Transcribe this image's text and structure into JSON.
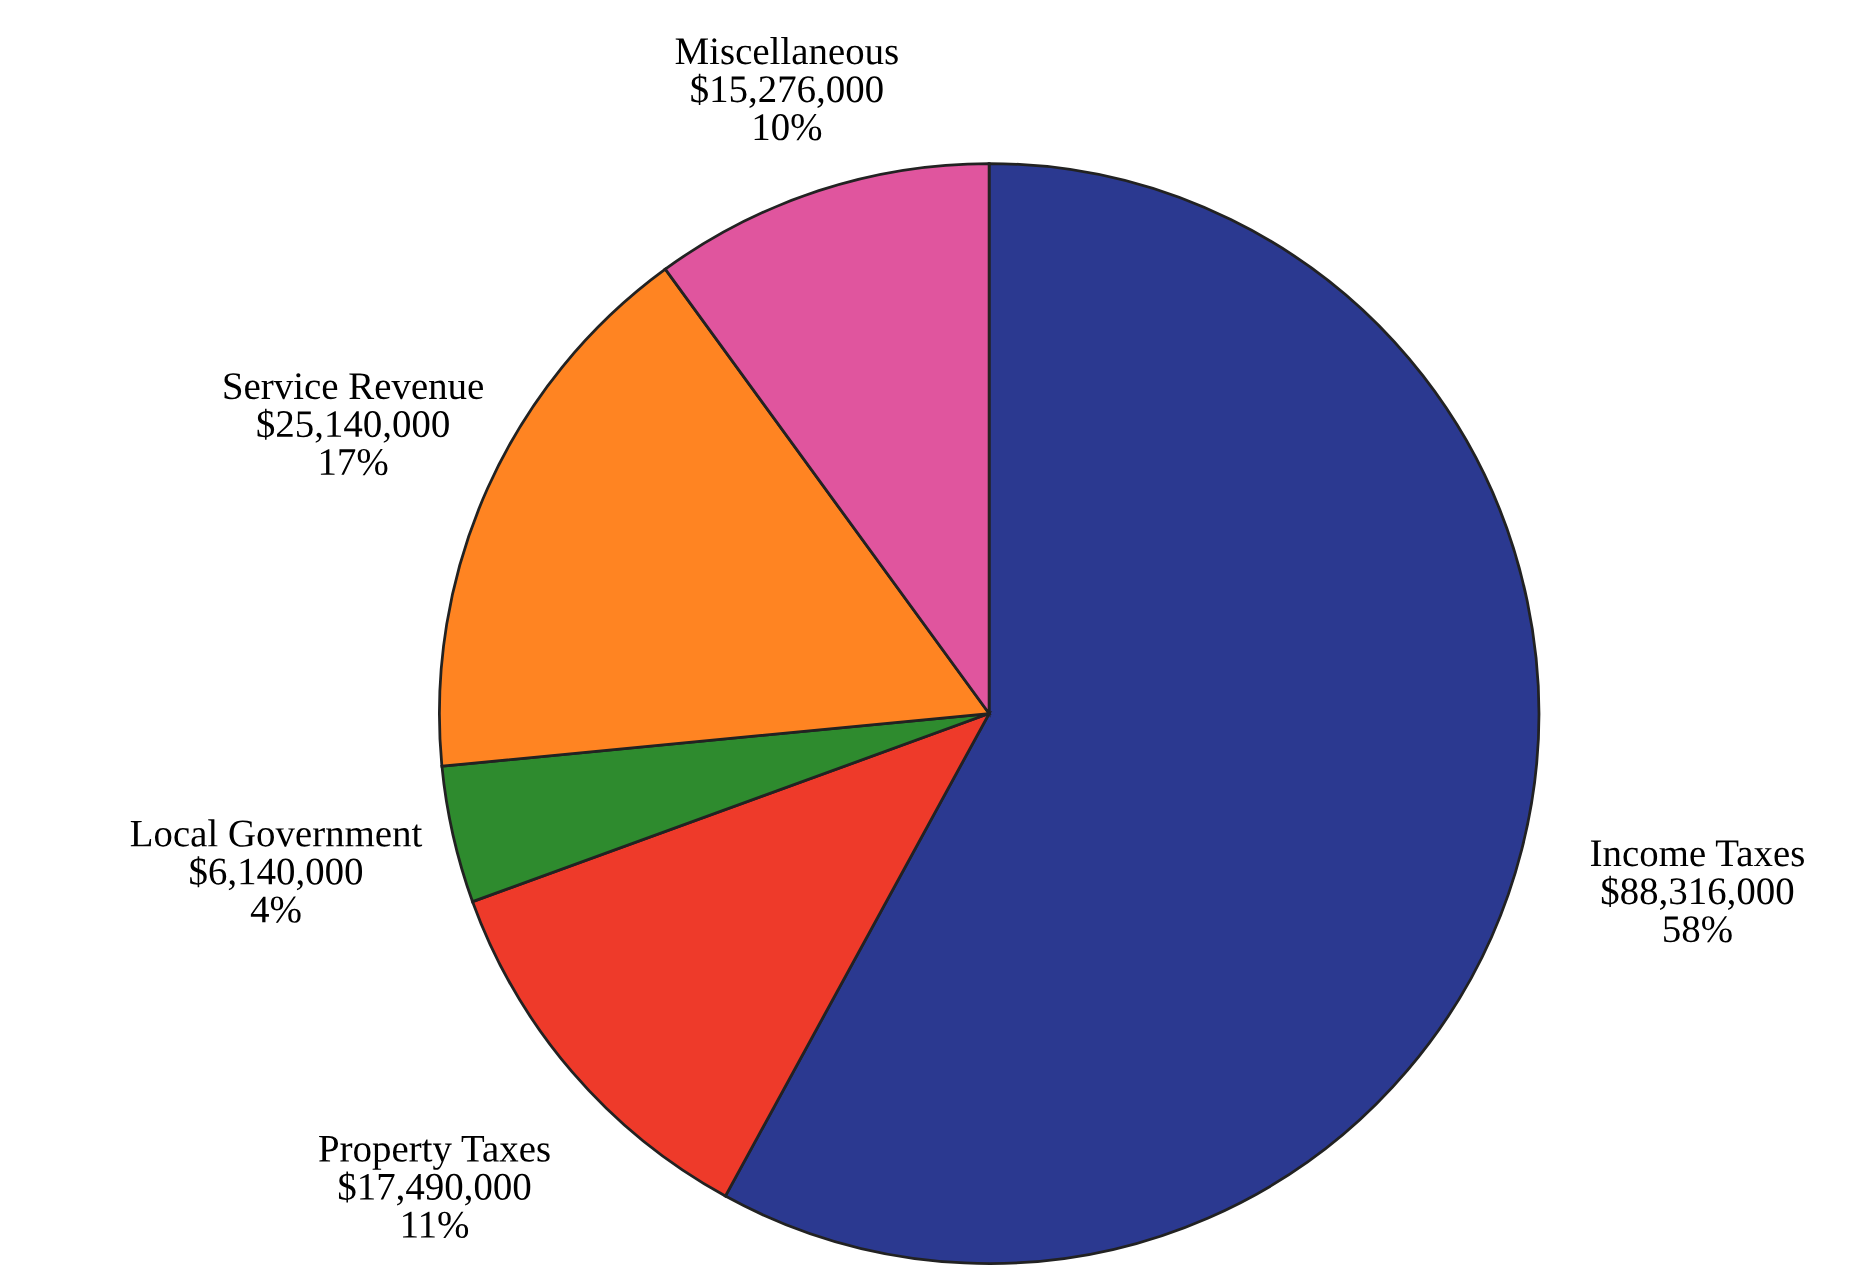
{
  "chart_data": {
    "type": "pie",
    "categories": [
      "Income Taxes",
      "Property Taxes",
      "Local Government",
      "Service Revenue",
      "Miscellaneous"
    ],
    "values": [
      88316000,
      17490000,
      6140000,
      25140000,
      15276000
    ],
    "value_labels": [
      "$88,316,000\n58%",
      "$17,490,000\n11%",
      "$6,140,000\n4%",
      "$25,140,000\n17%",
      "$15,276,000\n10%"
    ],
    "colors": [
      "#2b3990",
      "#ee3a2a",
      "#2e8b2e",
      "#ff8422",
      "#e0559e"
    ]
  }
}
